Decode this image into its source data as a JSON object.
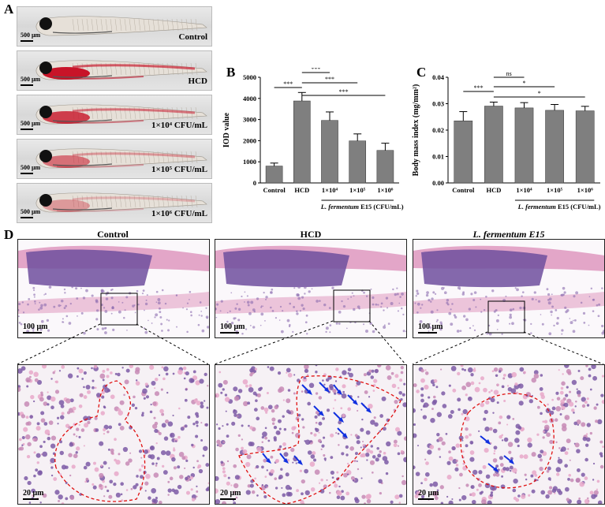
{
  "panels": {
    "A": {
      "letter": "A",
      "images": [
        {
          "label": "Control",
          "scale": "500 μm"
        },
        {
          "label": "HCD",
          "scale": "500 μm"
        },
        {
          "label": "1×10⁴ CFU/mL",
          "scale": "500 μm"
        },
        {
          "label": "1×10⁵ CFU/mL",
          "scale": "500 μm"
        },
        {
          "label": "1×10⁶ CFU/mL",
          "scale": "500 μm"
        }
      ]
    },
    "B": {
      "letter": "B"
    },
    "C": {
      "letter": "C"
    },
    "D": {
      "letter": "D",
      "titles": [
        "Control",
        "HCD",
        "L. fermentum E15"
      ],
      "scale_top": "100 μm",
      "scale_bottom": "20 μm"
    }
  },
  "chart_data": [
    {
      "type": "bar",
      "panel": "B",
      "ylabel": "IOD value",
      "categories": [
        "Control",
        "HCD",
        "1×10⁴",
        "1×10⁵",
        "1×10⁶"
      ],
      "values": [
        800,
        3880,
        2960,
        1990,
        1540
      ],
      "errors": [
        140,
        400,
        400,
        330,
        340
      ],
      "ylim": [
        0,
        5000
      ],
      "yticks": [
        "0",
        "1000",
        "2000",
        "3000",
        "4000",
        "5000"
      ],
      "group_label": "L. fermentum E15 (CFU/mL)",
      "significance": [
        "***",
        "***",
        "***",
        "***"
      ]
    },
    {
      "type": "bar",
      "panel": "C",
      "ylabel": "Body mass index (mg/mm²)",
      "categories": [
        "Control",
        "HCD",
        "1×10⁴",
        "1×10⁵",
        "1×10⁶"
      ],
      "values": [
        0.0235,
        0.0291,
        0.0284,
        0.0275,
        0.0273
      ],
      "errors": [
        0.0035,
        0.0015,
        0.002,
        0.0022,
        0.0017
      ],
      "ylim": [
        0,
        0.04
      ],
      "yticks": [
        "0.00",
        "0.01",
        "0.02",
        "0.03",
        "0.04"
      ],
      "group_label": "L. fermentum E15 (CFU/mL)",
      "significance": [
        "***",
        "ns",
        "*",
        "*"
      ]
    }
  ]
}
